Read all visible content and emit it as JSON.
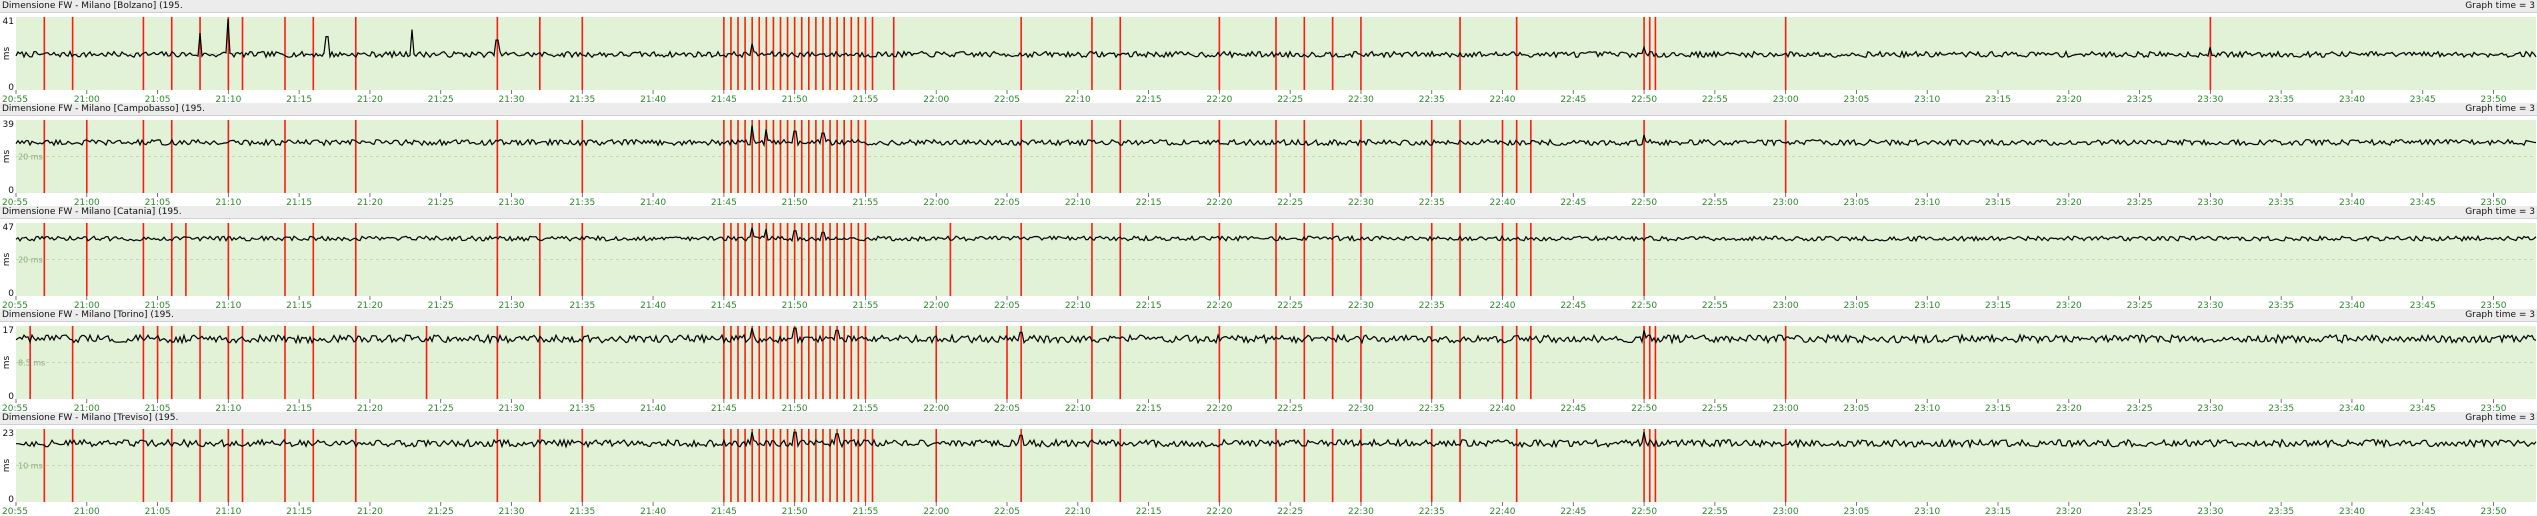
{
  "colors": {
    "plot_bg": "#e2f2d6",
    "timeout": "#ff1a1a",
    "line": "#000000",
    "tick": "#2a8a2a",
    "grid": "#9bbf8f"
  },
  "x_ticks": [
    "20:55",
    "21:00",
    "21:05",
    "21:10",
    "21:15",
    "21:20",
    "21:25",
    "21:30",
    "21:35",
    "21:40",
    "21:45",
    "21:50",
    "21:55",
    "22:00",
    "22:05",
    "22:10",
    "22:15",
    "22:20",
    "22:25",
    "22:30",
    "22:35",
    "22:40",
    "22:45",
    "22:50",
    "22:55",
    "23:00",
    "23:05",
    "23:10",
    "23:15",
    "23:20",
    "23:25",
    "23:30",
    "23:35",
    "23:40",
    "23:45",
    "23:50"
  ],
  "y_unit": "ms",
  "graph_time_label": "Graph time = 3",
  "chart_data": [
    {
      "type": "line",
      "title": "Dimensione FW - Milano [Bolzano] (195.",
      "ylabel": "ms",
      "ylim": [
        0,
        41
      ],
      "y_max_label": "41",
      "y_min_label": "0",
      "mid_label": "",
      "x_range": [
        "20:55",
        "23:53"
      ],
      "series": [
        {
          "baseline": 20,
          "noise": 1.6,
          "data_end": "23:53"
        }
      ],
      "spikes": [
        [
          "21:10",
          40
        ],
        [
          "21:08",
          32
        ],
        [
          "21:17",
          30
        ],
        [
          "21:23",
          34
        ],
        [
          "21:29",
          28
        ],
        [
          "21:47",
          26
        ],
        [
          "22:50",
          24
        ],
        [
          "23:30",
          24
        ]
      ],
      "red_lines": [
        "20:57",
        "20:59",
        "21:04",
        "21:06",
        "21:08",
        "21:10",
        "21:11",
        "21:14",
        "21:16",
        "21:19",
        "21:29",
        "21:32",
        "21:35",
        "21:45",
        "21:45.5",
        "21:46",
        "21:46.5",
        "21:47",
        "21:47.5",
        "21:48",
        "21:48.5",
        "21:49",
        "21:49.5",
        "21:50",
        "21:50.5",
        "21:51",
        "21:51.5",
        "21:52",
        "21:52.5",
        "21:53",
        "21:53.5",
        "21:54",
        "21:54.5",
        "21:55",
        "21:55.5",
        "21:57",
        "22:06",
        "22:11",
        "22:13",
        "22:20",
        "22:24",
        "22:26",
        "22:28",
        "22:30",
        "22:37",
        "22:41",
        "22:50",
        "22:50.4",
        "22:50.8",
        "23:00",
        "23:30"
      ]
    },
    {
      "type": "line",
      "title": "Dimensione FW - Milano [Campobasso] (195.",
      "ylabel": "ms",
      "ylim": [
        0,
        39
      ],
      "y_max_label": "39",
      "y_min_label": "0",
      "mid_label": "20 ms",
      "x_range": [
        "20:55",
        "23:53"
      ],
      "series": [
        {
          "baseline": 27,
          "noise": 1.5,
          "data_end": "23:53"
        }
      ],
      "spikes": [
        [
          "21:47",
          36
        ],
        [
          "21:48",
          34
        ],
        [
          "21:50",
          33
        ],
        [
          "21:52",
          32
        ],
        [
          "22:50",
          31
        ]
      ],
      "red_lines": [
        "20:57",
        "21:00",
        "21:04",
        "21:06",
        "21:10",
        "21:14",
        "21:19",
        "21:29",
        "21:35",
        "21:45",
        "21:45.5",
        "21:46",
        "21:46.5",
        "21:47",
        "21:47.5",
        "21:48",
        "21:48.5",
        "21:49",
        "21:49.5",
        "21:50",
        "21:50.5",
        "21:51",
        "21:51.5",
        "21:52",
        "21:52.5",
        "21:53",
        "21:53.5",
        "21:54",
        "21:54.5",
        "21:55",
        "22:06",
        "22:11",
        "22:13",
        "22:20",
        "22:24",
        "22:26",
        "22:30",
        "22:35",
        "22:37",
        "22:40",
        "22:41",
        "22:42",
        "22:50",
        "23:00"
      ]
    },
    {
      "type": "line",
      "title": "Dimensione FW - Milano [Catania] (195.",
      "ylabel": "ms",
      "ylim": [
        0,
        47
      ],
      "y_max_label": "47",
      "y_min_label": "0",
      "mid_label": "20 ms",
      "x_range": [
        "20:55",
        "23:53"
      ],
      "series": [
        {
          "baseline": 37,
          "noise": 1.5,
          "data_end": "23:53"
        }
      ],
      "spikes": [
        [
          "21:47",
          44
        ],
        [
          "21:48",
          43
        ],
        [
          "21:50",
          42
        ],
        [
          "21:52",
          41
        ]
      ],
      "red_lines": [
        "20:57",
        "21:00",
        "21:04",
        "21:06",
        "21:07",
        "21:10",
        "21:14",
        "21:16",
        "21:19",
        "21:29",
        "21:32",
        "21:35",
        "21:45",
        "21:45.5",
        "21:46",
        "21:46.5",
        "21:47",
        "21:47.5",
        "21:48",
        "21:48.5",
        "21:49",
        "21:49.5",
        "21:50",
        "21:50.5",
        "21:51",
        "21:51.5",
        "21:52",
        "21:52.5",
        "21:53",
        "21:53.5",
        "21:54",
        "21:54.5",
        "21:55",
        "22:01",
        "22:06",
        "22:11",
        "22:13",
        "22:20",
        "22:24",
        "22:26",
        "22:28",
        "22:30",
        "22:35",
        "22:37",
        "22:40",
        "22:41",
        "22:42",
        "22:50"
      ]
    },
    {
      "type": "line",
      "title": "Dimensione FW - Milano [Torino] (195.",
      "ylabel": "ms",
      "ylim": [
        0,
        17
      ],
      "y_max_label": "17",
      "y_min_label": "0",
      "mid_label": "8.5 ms",
      "x_range": [
        "20:55",
        "23:53"
      ],
      "series": [
        {
          "baseline": 14,
          "noise": 0.9,
          "data_end": "23:53"
        }
      ],
      "spikes": [
        [
          "21:47",
          16.5
        ],
        [
          "21:50",
          16.5
        ],
        [
          "21:53",
          16
        ],
        [
          "22:50",
          16
        ],
        [
          "22:06",
          15.5
        ]
      ],
      "red_lines": [
        "20:56",
        "20:59",
        "21:04",
        "21:05",
        "21:06",
        "21:08",
        "21:10",
        "21:11",
        "21:14",
        "21:16",
        "21:19",
        "21:24",
        "21:29",
        "21:32",
        "21:35",
        "21:45",
        "21:45.5",
        "21:46",
        "21:46.5",
        "21:47",
        "21:47.5",
        "21:48",
        "21:48.5",
        "21:49",
        "21:49.5",
        "21:50",
        "21:50.5",
        "21:51",
        "21:51.5",
        "21:52",
        "21:52.5",
        "21:53",
        "21:53.5",
        "21:54",
        "21:54.5",
        "21:55",
        "22:00",
        "22:05",
        "22:06",
        "22:11",
        "22:13",
        "22:20",
        "22:24",
        "22:26",
        "22:28",
        "22:30",
        "22:35",
        "22:37",
        "22:40",
        "22:41",
        "22:42",
        "22:50",
        "22:50.4",
        "22:50.8",
        "23:00"
      ]
    },
    {
      "type": "line",
      "title": "Dimensione FW - Milano [Treviso] (195.",
      "ylabel": "ms",
      "ylim": [
        0,
        23
      ],
      "y_max_label": "23",
      "y_min_label": "0",
      "mid_label": "10 ms",
      "x_range": [
        "20:55",
        "23:53"
      ],
      "series": [
        {
          "baseline": 18.5,
          "noise": 1.1,
          "data_end": "23:53"
        }
      ],
      "spikes": [
        [
          "21:47",
          22
        ],
        [
          "21:50",
          22
        ],
        [
          "21:53",
          21.5
        ],
        [
          "22:06",
          21
        ],
        [
          "22:50",
          22
        ]
      ],
      "red_lines": [
        "20:57",
        "20:59",
        "21:04",
        "21:06",
        "21:08",
        "21:10",
        "21:11",
        "21:14",
        "21:16",
        "21:19",
        "21:29",
        "21:32",
        "21:35",
        "21:45",
        "21:45.5",
        "21:46",
        "21:46.5",
        "21:47",
        "21:47.5",
        "21:48",
        "21:48.5",
        "21:49",
        "21:49.5",
        "21:50",
        "21:50.5",
        "21:51",
        "21:51.5",
        "21:52",
        "21:52.5",
        "21:53",
        "21:53.5",
        "21:54",
        "21:54.5",
        "21:55",
        "21:55.5",
        "22:00",
        "22:06",
        "22:11",
        "22:13",
        "22:20",
        "22:24",
        "22:26",
        "22:28",
        "22:30",
        "22:35",
        "22:37",
        "22:41",
        "22:50",
        "22:50.4",
        "22:50.8",
        "23:00"
      ]
    }
  ]
}
